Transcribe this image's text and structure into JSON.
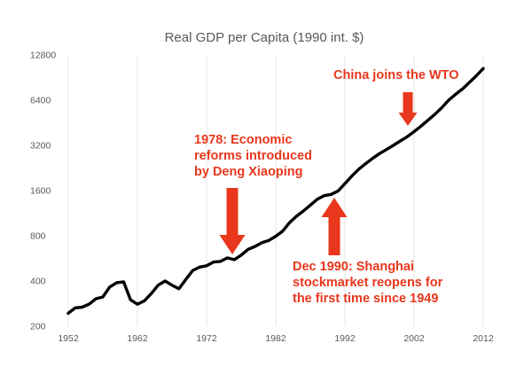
{
  "chart_data": {
    "type": "line",
    "title": "Real GDP per Capita (1990 int. $)",
    "xlabel": "",
    "ylabel": "",
    "y_scale": "log2",
    "xlim": [
      1952,
      2012
    ],
    "ylim": [
      200,
      12800
    ],
    "x_ticks": [
      "1952",
      "1962",
      "1972",
      "1982",
      "1992",
      "2002",
      "2012"
    ],
    "y_ticks": [
      "200",
      "400",
      "800",
      "1600",
      "3200",
      "6400",
      "12800"
    ],
    "grid": "vertical",
    "line_color": "#000000",
    "annotation_color": "#e8371c",
    "series": [
      {
        "x": [
          1952,
          1953,
          1954,
          1955,
          1956,
          1957,
          1958,
          1959,
          1960,
          1961,
          1962,
          1963,
          1964,
          1965,
          1966,
          1967,
          1968,
          1969,
          1970,
          1971,
          1972,
          1973,
          1974,
          1975,
          1976,
          1977,
          1978,
          1979,
          1980,
          1981,
          1982,
          1983,
          1984,
          1985,
          1986,
          1987,
          1988,
          1989,
          1990,
          1991,
          1992,
          1993,
          1994,
          1995,
          1996,
          1997,
          1998,
          1999,
          2000,
          2001,
          2002,
          2003,
          2004,
          2005,
          2006,
          2007,
          2008,
          2009,
          2010,
          2011,
          2012
        ],
        "y": [
          244,
          265,
          268,
          280,
          305,
          313,
          365,
          390,
          395,
          300,
          280,
          295,
          330,
          375,
          400,
          375,
          355,
          410,
          470,
          495,
          505,
          535,
          540,
          570,
          555,
          595,
          650,
          680,
          720,
          745,
          795,
          860,
          980,
          1080,
          1170,
          1280,
          1400,
          1480,
          1510,
          1590,
          1780,
          2000,
          2220,
          2420,
          2620,
          2820,
          3000,
          3200,
          3420,
          3650,
          3950,
          4300,
          4700,
          5150,
          5700,
          6400,
          7000,
          7600,
          8400,
          9300,
          10400
        ]
      }
    ],
    "annotations": [
      {
        "text_lines": [
          "China joins the WTO"
        ],
        "x": 2001,
        "y": 3650
      },
      {
        "text_lines": [
          "1978: Economic",
          "reforms introduced",
          "by Deng Xiaoping"
        ],
        "x": 1978,
        "y": 650
      },
      {
        "text_lines": [
          "Dec 1990: Shanghai",
          "stockmarket reopens for",
          "the first time since 1949"
        ],
        "x": 1990,
        "y": 1510
      }
    ]
  }
}
